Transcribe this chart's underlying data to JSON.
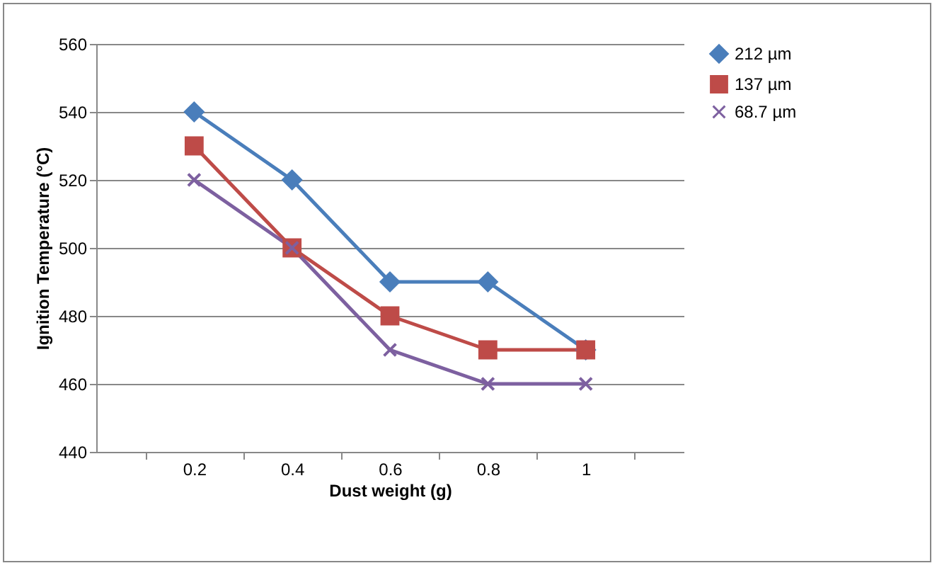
{
  "chart_data": {
    "type": "line",
    "xlabel": "Dust weight (g)",
    "ylabel": "Ignition Temperature (°C)",
    "categories": [
      "0.2",
      "0.4",
      "0.6",
      "0.8",
      "1"
    ],
    "series": [
      {
        "name": "212 µm",
        "color": "#4a7ebb",
        "marker": "diamond",
        "values": [
          540,
          520,
          490,
          490,
          470
        ]
      },
      {
        "name": "137 µm",
        "color": "#be4b48",
        "marker": "square",
        "values": [
          530,
          500,
          480,
          470,
          470
        ]
      },
      {
        "name": "68.7 µm",
        "color": "#7d60a0",
        "marker": "cross",
        "values": [
          520,
          500,
          470,
          460,
          460
        ]
      }
    ],
    "ylim": [
      440,
      560
    ],
    "yticks": [
      440,
      460,
      480,
      500,
      520,
      540,
      560
    ],
    "grid": "y",
    "legend": "right",
    "line_style": "solid"
  }
}
